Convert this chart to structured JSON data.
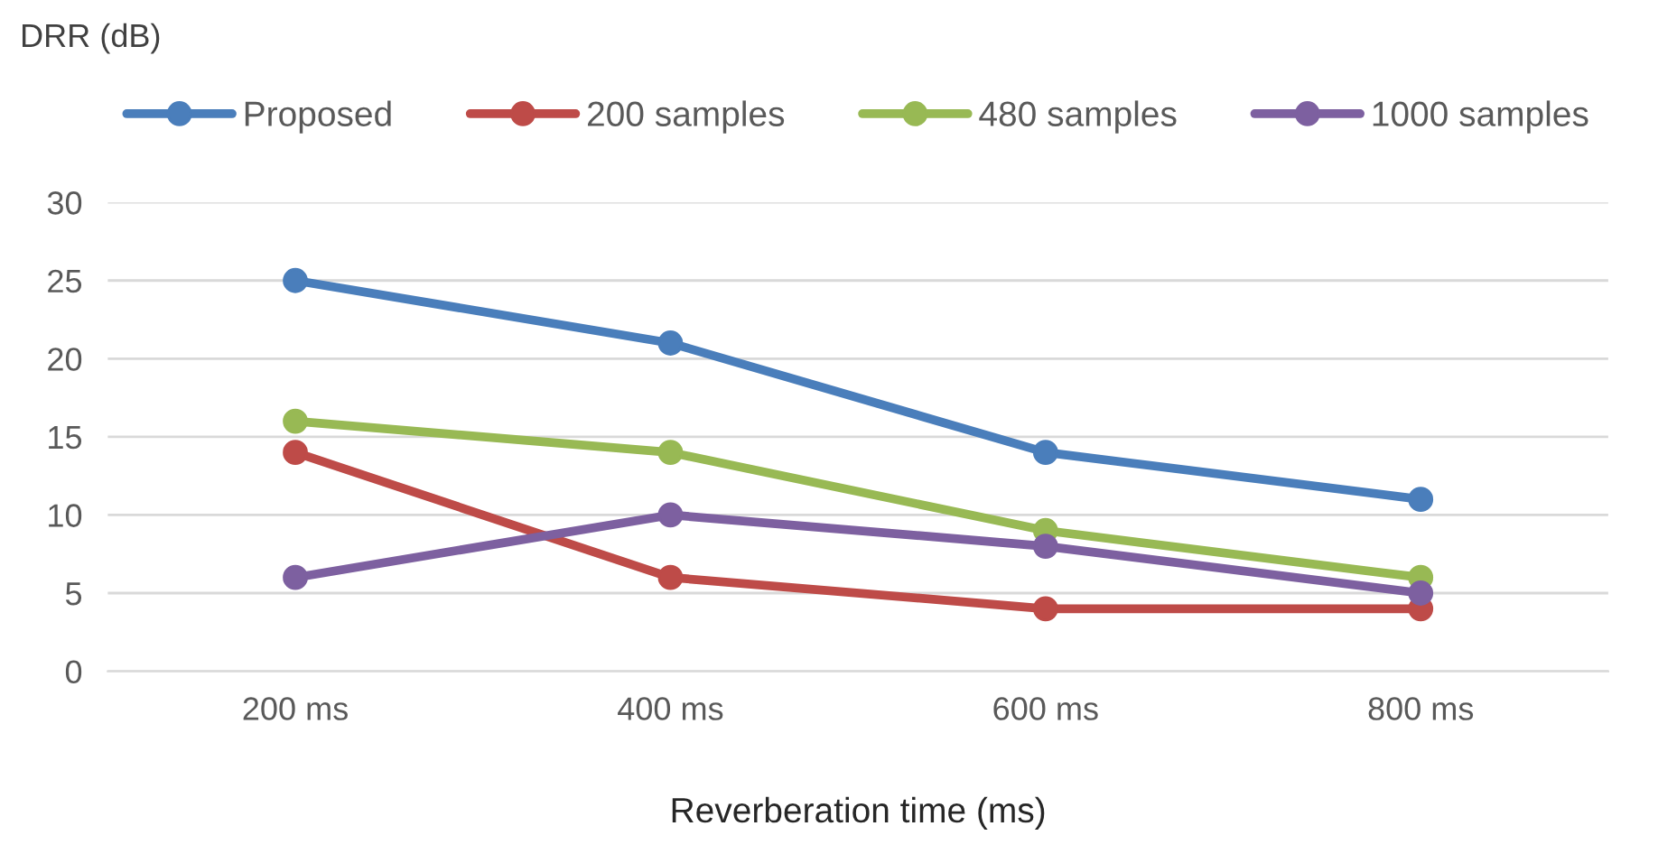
{
  "chart_data": {
    "type": "line",
    "ylabel": "DRR (dB)",
    "xlabel": "Reverberation time (ms)",
    "categories": [
      "200 ms",
      "400 ms",
      "600 ms",
      "800 ms"
    ],
    "series": [
      {
        "name": "Proposed",
        "color": "#4a7ebb",
        "values": [
          25,
          21,
          14,
          11
        ]
      },
      {
        "name": "200 samples",
        "color": "#be4b48",
        "values": [
          14,
          6,
          4,
          4
        ]
      },
      {
        "name": "480 samples",
        "color": "#98b954",
        "values": [
          16,
          14,
          9,
          6
        ]
      },
      {
        "name": "1000 samples",
        "color": "#7d60a0",
        "values": [
          6,
          10,
          8,
          5
        ]
      }
    ],
    "ylim": [
      0,
      30
    ],
    "yticks": [
      0,
      5,
      10,
      15,
      20,
      25,
      30
    ],
    "grid": "y",
    "legend": "top",
    "marker": "circle",
    "line_style": "solid"
  }
}
